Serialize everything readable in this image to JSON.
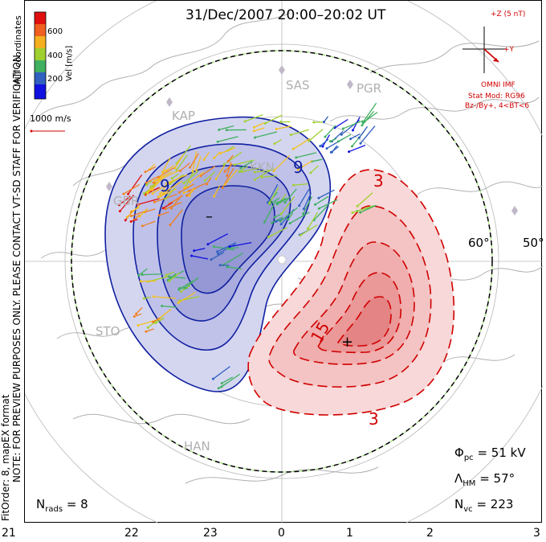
{
  "title": "31/Dec/2007 20:00–20:02 UT",
  "side_notes": {
    "coords": "MLT coordinates",
    "preview": "NOTE: FOR PREVIEW PURPOSES ONLY. PLEASE CONTACT VT-SD STAFF FOR VERIFICATION.",
    "fit": "FitOrder: 8, mapEX format"
  },
  "colorbar": {
    "label": "Vel [m/s]",
    "ticks": [
      "600",
      "400",
      "200"
    ],
    "colors": [
      "#e01010",
      "#f08020",
      "#f4c020",
      "#a0d030",
      "#40b060",
      "#3060c0",
      "#1010e0"
    ]
  },
  "scale_vector": "1000 m/s",
  "imf": {
    "z_label": "+Z (5 nT)",
    "y_label": "+Y",
    "source": "OMNI IMF",
    "model": "Stat Mod: RG96",
    "condition": "Bz-/By+, 4<BT<6"
  },
  "stations": [
    "SAS",
    "PGR",
    "KAP",
    "GBR",
    "KKN",
    "STO",
    "HAN"
  ],
  "latitude_labels": [
    "60°",
    "50°"
  ],
  "contour_labels": {
    "neg_a": "9",
    "neg_b": "9",
    "pos_a": "3",
    "pos_b": "15",
    "pos_c": "3",
    "min_marker": "–",
    "max_marker": "+"
  },
  "stats": {
    "phi_label": "Φ",
    "phi_sub": "pc",
    "phi_value": "= 51 kV",
    "lambda_label": "Λ",
    "lambda_sub": "HM",
    "lambda_value": "= 57°",
    "nvc_label": "N",
    "nvc_sub": "vc",
    "nvc_value": "= 223",
    "nrads_label": "N",
    "nrads_sub": "rads",
    "nrads_value": "= 8"
  },
  "mlt_ticks": [
    "21",
    "22",
    "23",
    "0",
    "1",
    "2",
    "3"
  ]
}
